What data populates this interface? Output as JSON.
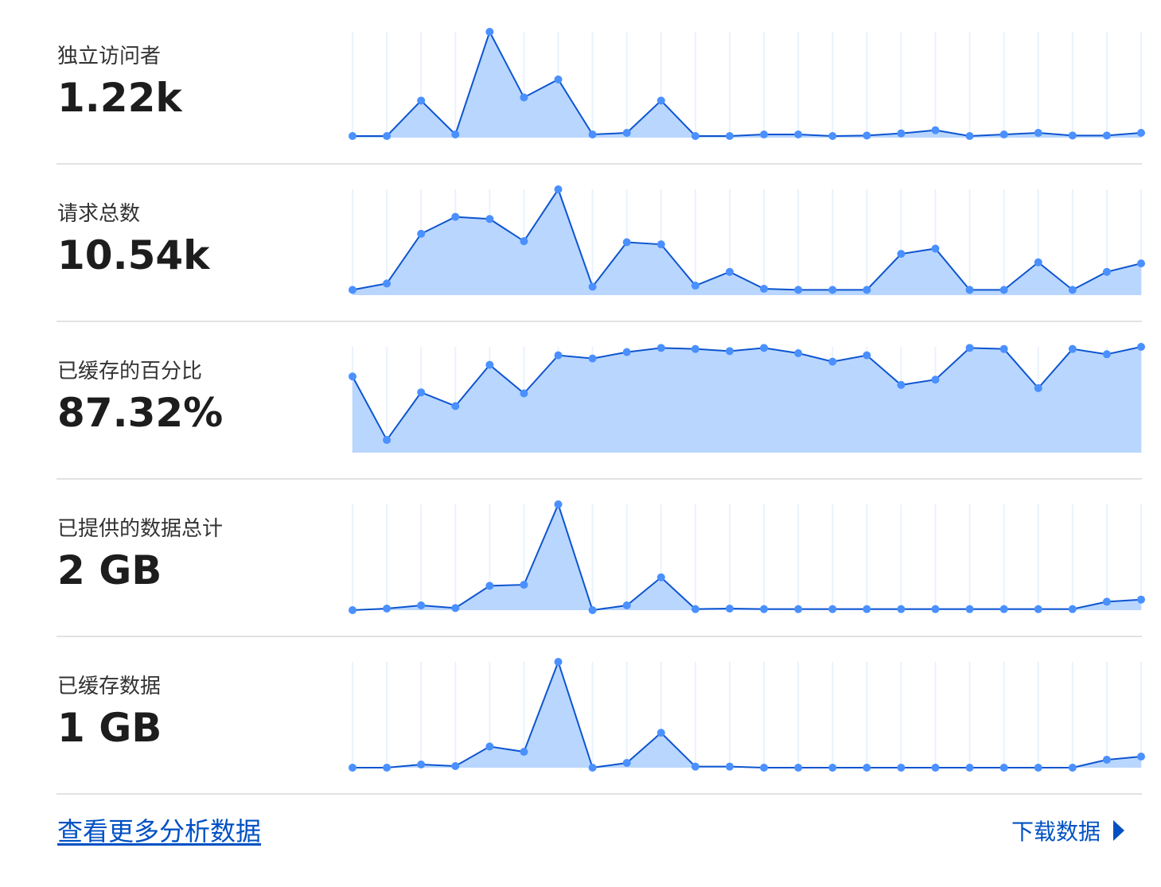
{
  "colors": {
    "fill": "#b9d6ff",
    "line": "#0d55cf",
    "dot": "#4a90ff",
    "grid": "#eaf2fd",
    "link": "#0051c3"
  },
  "metrics": [
    {
      "label": "独立访问者",
      "value": "1.22k"
    },
    {
      "label": "请求总数",
      "value": "10.54k"
    },
    {
      "label": "已缓存的百分比",
      "value": "87.32%"
    },
    {
      "label": "已提供的数据总计",
      "value": "2 GB"
    },
    {
      "label": "已缓存数据",
      "value": "1 GB"
    }
  ],
  "chart_data": [
    {
      "type": "area",
      "ylim": [
        0,
        100
      ],
      "values": [
        1.5,
        1.5,
        35,
        3,
        100,
        38,
        55,
        3,
        4.5,
        35,
        1.5,
        1.5,
        3,
        3,
        1.5,
        2,
        4,
        7,
        1.5,
        3,
        4.5,
        2,
        2,
        4.5
      ]
    },
    {
      "type": "area",
      "ylim": [
        0,
        100
      ],
      "values": [
        5,
        11,
        58,
        74,
        72,
        51,
        100,
        8,
        50,
        48,
        9,
        22,
        6,
        5,
        5,
        5,
        39,
        44,
        5,
        5,
        31,
        5,
        22,
        30
      ]
    },
    {
      "type": "area",
      "ylim": [
        0,
        100
      ],
      "values": [
        72,
        12,
        57,
        44,
        83,
        56,
        92,
        89,
        95,
        99,
        98,
        96,
        99,
        94,
        86,
        92,
        64,
        69,
        99,
        98,
        61,
        98,
        93,
        100
      ]
    },
    {
      "type": "area",
      "ylim": [
        0,
        100
      ],
      "values": [
        0,
        1.5,
        4.5,
        2,
        23,
        24,
        100,
        0,
        4.5,
        31,
        1,
        1.5,
        1,
        1,
        1,
        1,
        1,
        1,
        1,
        1,
        1,
        1,
        8,
        10
      ]
    },
    {
      "type": "area",
      "ylim": [
        0,
        100
      ],
      "values": [
        0,
        0,
        3,
        1.5,
        20,
        15,
        100,
        0,
        4.5,
        33,
        1,
        1,
        0,
        0,
        0,
        0,
        0,
        0,
        0,
        0,
        0,
        0,
        7.5,
        10.5
      ]
    }
  ],
  "footer": {
    "more_link": "查看更多分析数据",
    "download_label": "下载数据",
    "download_icon": "caret-right-icon"
  }
}
